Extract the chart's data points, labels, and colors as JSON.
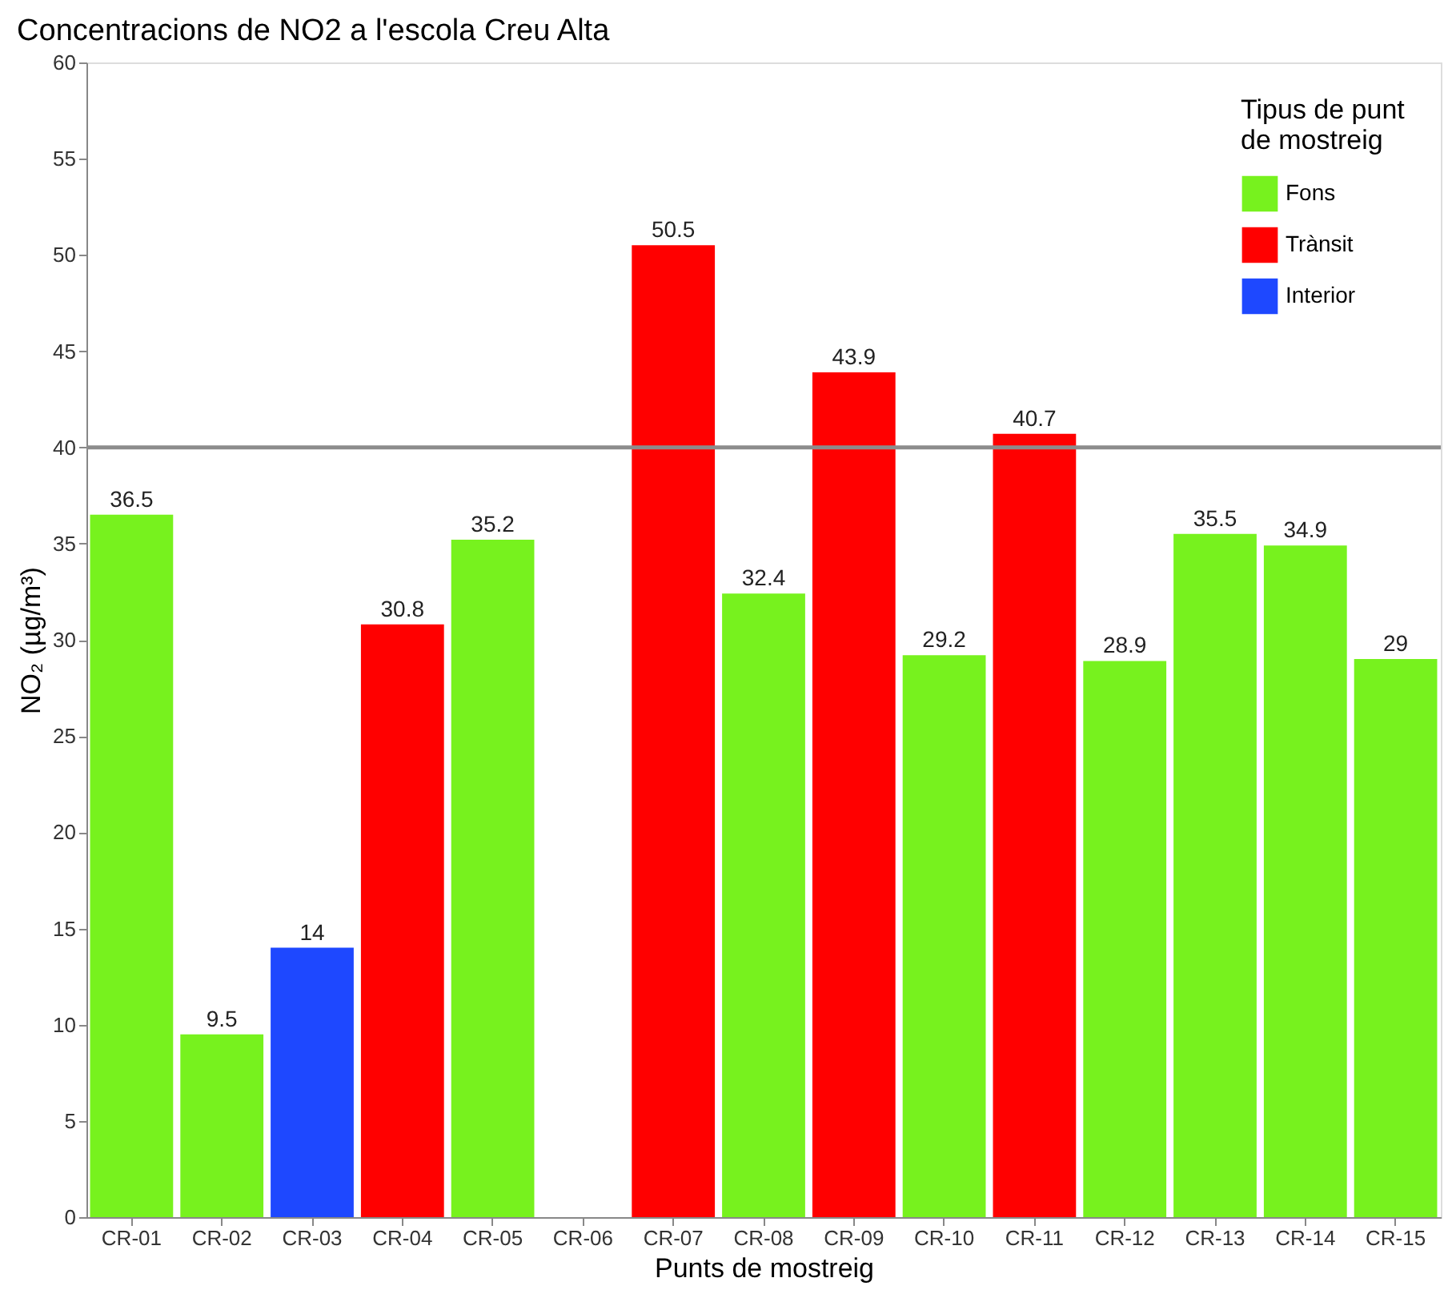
{
  "chart_data": {
    "type": "bar",
    "title": "Concentracions de NO2 a l'escola Creu Alta",
    "xlabel": "Punts de mostreig",
    "ylabel": "NO₂ (µg/m³)",
    "legend_title": "Tipus de punt de mostreig",
    "categories": [
      "CR-01",
      "CR-02",
      "CR-03",
      "CR-04",
      "CR-05",
      "CR-06",
      "CR-07",
      "CR-08",
      "CR-09",
      "CR-10",
      "CR-11",
      "CR-12",
      "CR-13",
      "CR-14",
      "CR-15"
    ],
    "series": [
      {
        "name": "Fons",
        "color": "#77f21e",
        "values": [
          36.5,
          9.5,
          null,
          null,
          35.2,
          null,
          null,
          32.4,
          null,
          29.2,
          null,
          28.9,
          35.5,
          34.9,
          29
        ]
      },
      {
        "name": "Trànsit",
        "color": "#ff0000",
        "values": [
          null,
          null,
          null,
          30.8,
          null,
          null,
          50.5,
          null,
          43.9,
          null,
          40.7,
          null,
          null,
          null,
          null
        ]
      },
      {
        "name": "Interior",
        "color": "#1e48ff",
        "values": [
          null,
          null,
          14,
          null,
          null,
          null,
          null,
          null,
          null,
          null,
          null,
          null,
          null,
          null,
          null
        ]
      }
    ],
    "ylim": [
      0,
      60
    ],
    "yticks": [
      0,
      5,
      10,
      15,
      20,
      25,
      30,
      35,
      40,
      45,
      50,
      55,
      60
    ],
    "ref_lines": [
      {
        "axis": "y",
        "value": 40,
        "color": "#8c8c8c"
      }
    ],
    "data_labels": true,
    "grid": false,
    "legend": "top right"
  }
}
